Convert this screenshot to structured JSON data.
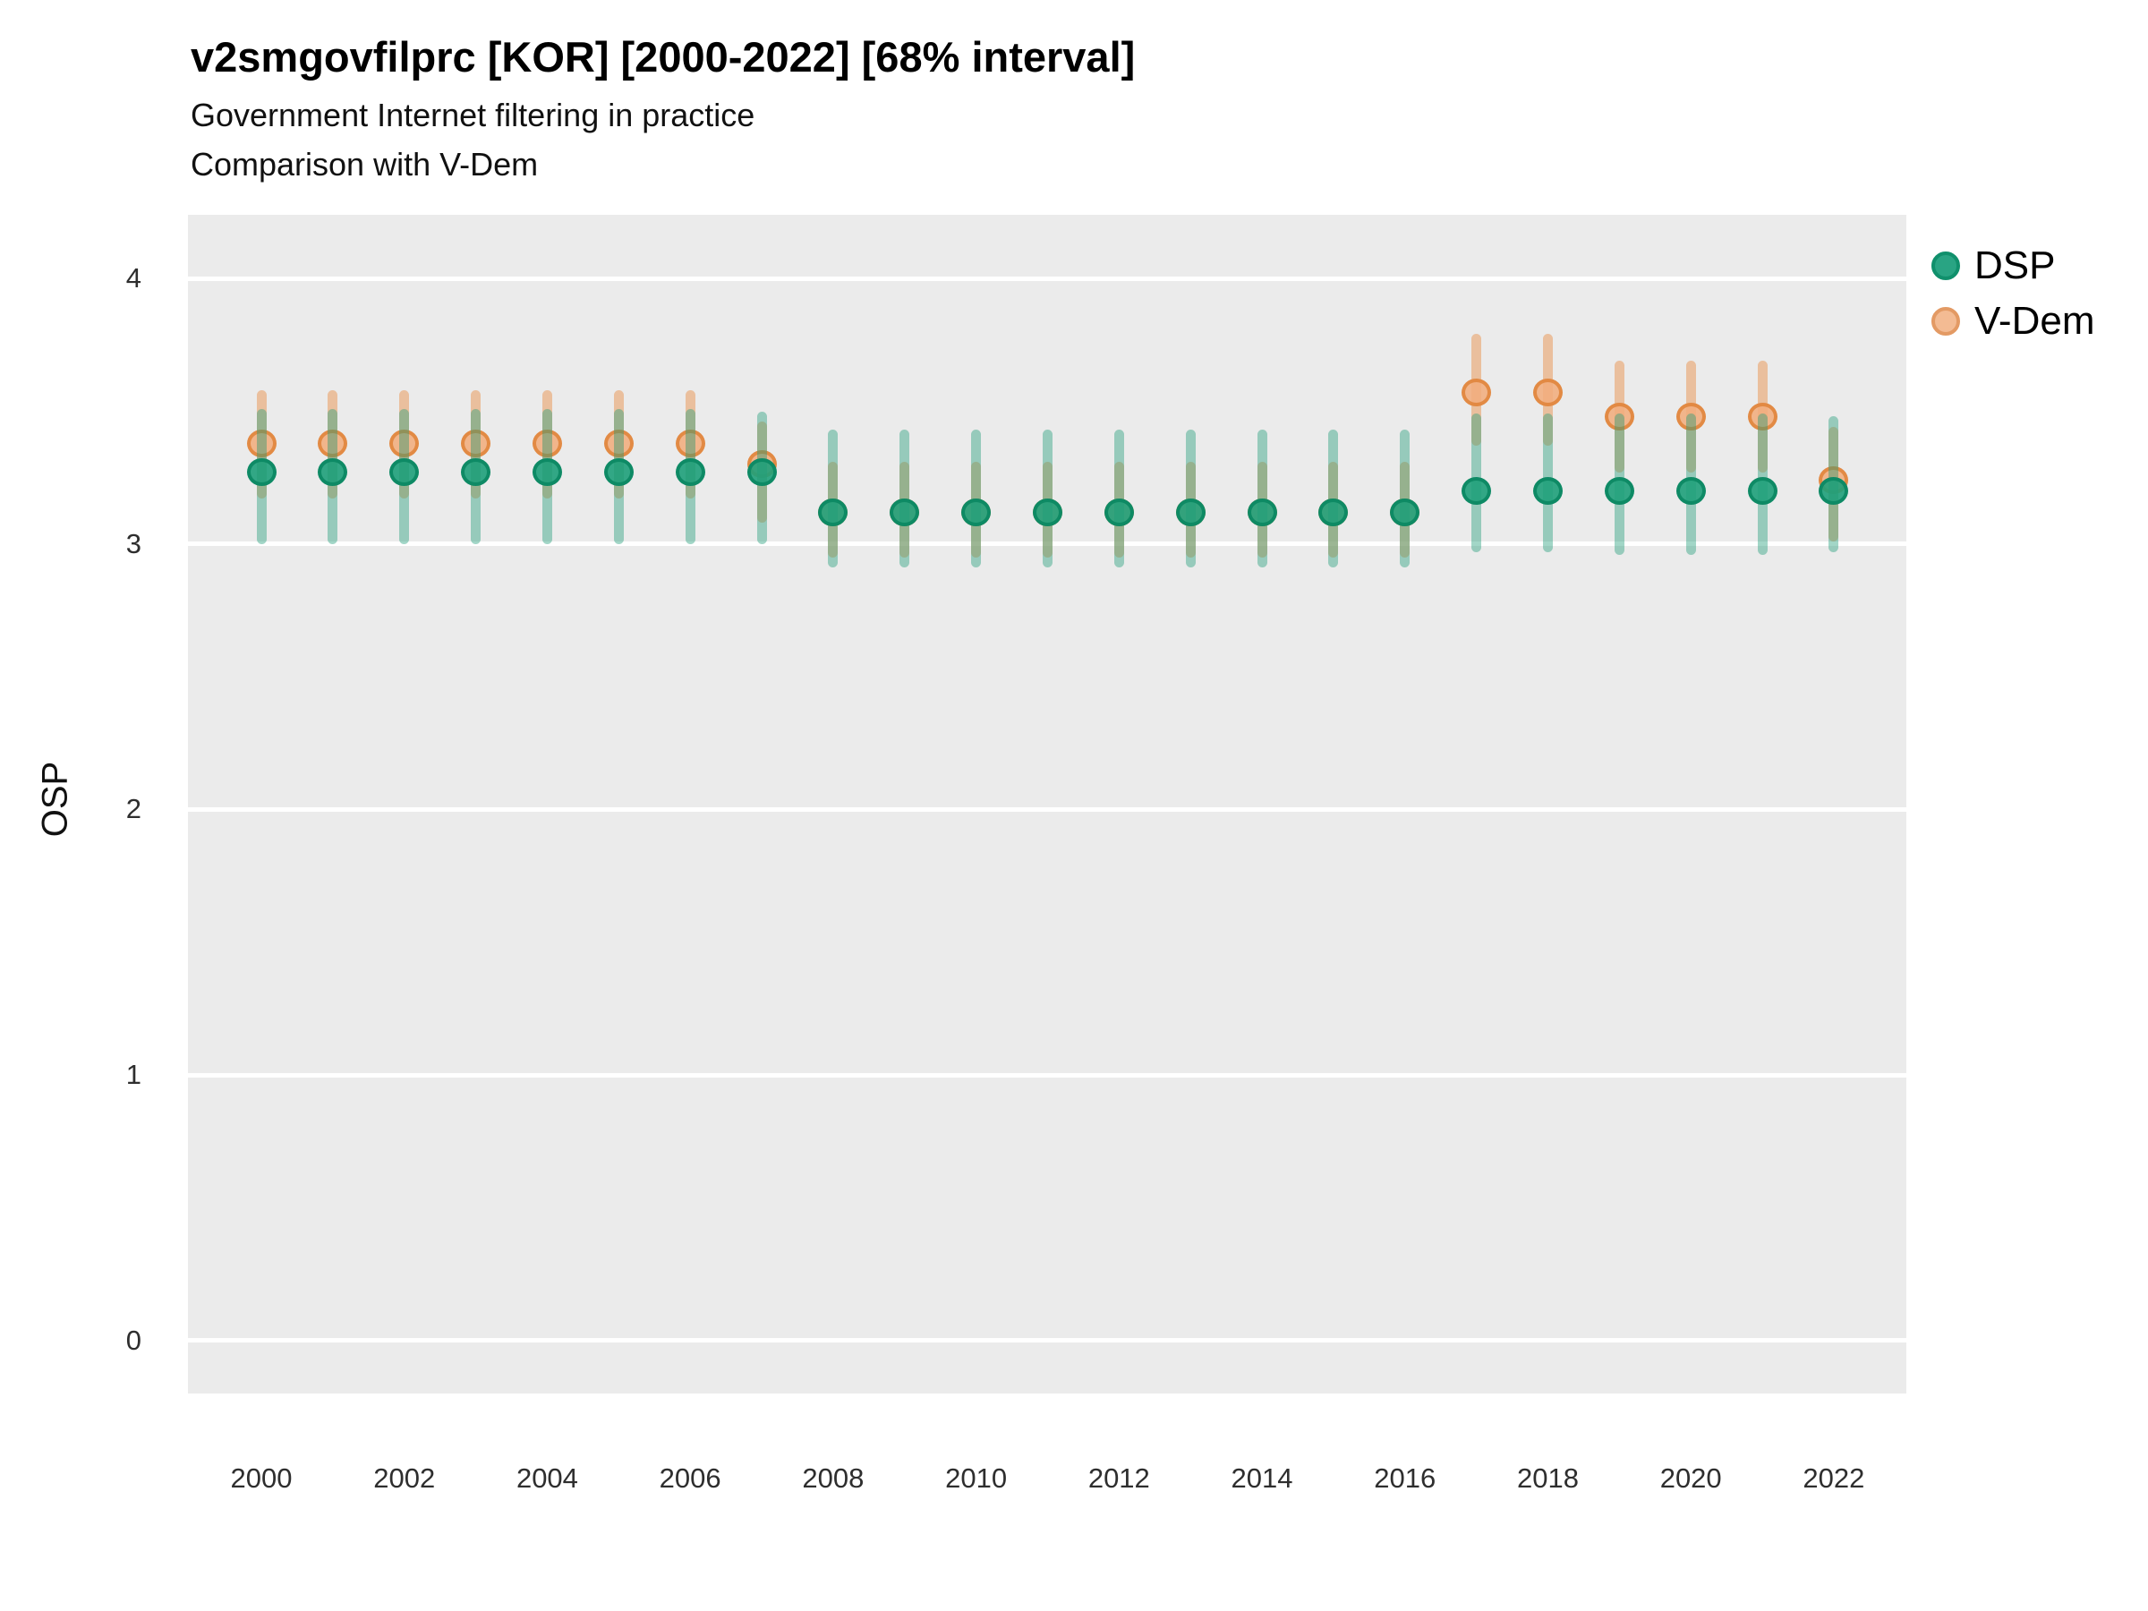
{
  "chart_data": {
    "type": "pointrange",
    "title": "v2smgovfilprc [KOR] [2000-2022] [68% interval]",
    "subtitle": [
      "Government Internet filtering in practice",
      "Comparison with V-Dem"
    ],
    "ylabel": "OSP",
    "interval": "68%",
    "legend_position": "right",
    "grid": "major horizontal white lines on gray panel",
    "panel_bg": "#EBEBEB",
    "ylim": [
      -0.2,
      4.24
    ],
    "yticks": [
      4,
      3,
      2,
      1,
      0
    ],
    "x": [
      2000,
      2001,
      2002,
      2003,
      2004,
      2005,
      2006,
      2007,
      2008,
      2009,
      2010,
      2011,
      2012,
      2013,
      2014,
      2015,
      2016,
      2017,
      2018,
      2019,
      2020,
      2021,
      2022
    ],
    "xtick_labels": [
      "2000",
      "2002",
      "2004",
      "2006",
      "2008",
      "2010",
      "2012",
      "2014",
      "2016",
      "2018",
      "2020",
      "2022"
    ],
    "series": [
      {
        "name": "V-Dem",
        "bar_color": "rgba(233,148,79,0.5)",
        "point_fill": "rgba(241,173,125,0.88)",
        "point_stroke": "rgba(224,133,60,0.9)",
        "est": [
          3.38,
          3.38,
          3.38,
          3.38,
          3.38,
          3.38,
          3.38,
          3.3,
          3.12,
          3.12,
          3.12,
          3.12,
          3.12,
          3.12,
          3.12,
          3.12,
          3.12,
          3.57,
          3.57,
          3.48,
          3.48,
          3.48,
          3.24
        ],
        "lo": [
          3.17,
          3.17,
          3.17,
          3.17,
          3.17,
          3.17,
          3.17,
          3.08,
          2.95,
          2.95,
          2.95,
          2.95,
          2.95,
          2.95,
          2.95,
          2.95,
          2.95,
          3.37,
          3.37,
          3.27,
          3.27,
          3.27,
          3.01
        ],
        "hi": [
          3.58,
          3.58,
          3.58,
          3.58,
          3.58,
          3.58,
          3.58,
          3.46,
          3.31,
          3.31,
          3.31,
          3.31,
          3.31,
          3.31,
          3.31,
          3.31,
          3.31,
          3.79,
          3.79,
          3.69,
          3.69,
          3.69,
          3.44
        ]
      },
      {
        "name": "DSP",
        "bar_color": "rgba(34,158,122,0.42)",
        "point_fill": "rgba(30,160,122,0.9)",
        "point_stroke": "rgba(13,137,99,0.95)",
        "est": [
          3.27,
          3.27,
          3.27,
          3.27,
          3.27,
          3.27,
          3.27,
          3.27,
          3.12,
          3.12,
          3.12,
          3.12,
          3.12,
          3.12,
          3.12,
          3.12,
          3.12,
          3.2,
          3.2,
          3.2,
          3.2,
          3.2,
          3.2
        ],
        "lo": [
          3.0,
          3.0,
          3.0,
          3.0,
          3.0,
          3.0,
          3.0,
          3.0,
          2.91,
          2.91,
          2.91,
          2.91,
          2.91,
          2.91,
          2.91,
          2.91,
          2.91,
          2.97,
          2.97,
          2.96,
          2.96,
          2.96,
          2.97
        ],
        "hi": [
          3.51,
          3.51,
          3.51,
          3.51,
          3.51,
          3.51,
          3.51,
          3.5,
          3.43,
          3.43,
          3.43,
          3.43,
          3.43,
          3.43,
          3.43,
          3.43,
          3.43,
          3.49,
          3.49,
          3.49,
          3.49,
          3.49,
          3.48
        ]
      }
    ],
    "legend": [
      {
        "label": "DSP",
        "fill": "#29a483",
        "stroke": "#10906c"
      },
      {
        "label": "V-Dem",
        "fill": "#f3bb93",
        "stroke": "#e39a64"
      }
    ]
  }
}
